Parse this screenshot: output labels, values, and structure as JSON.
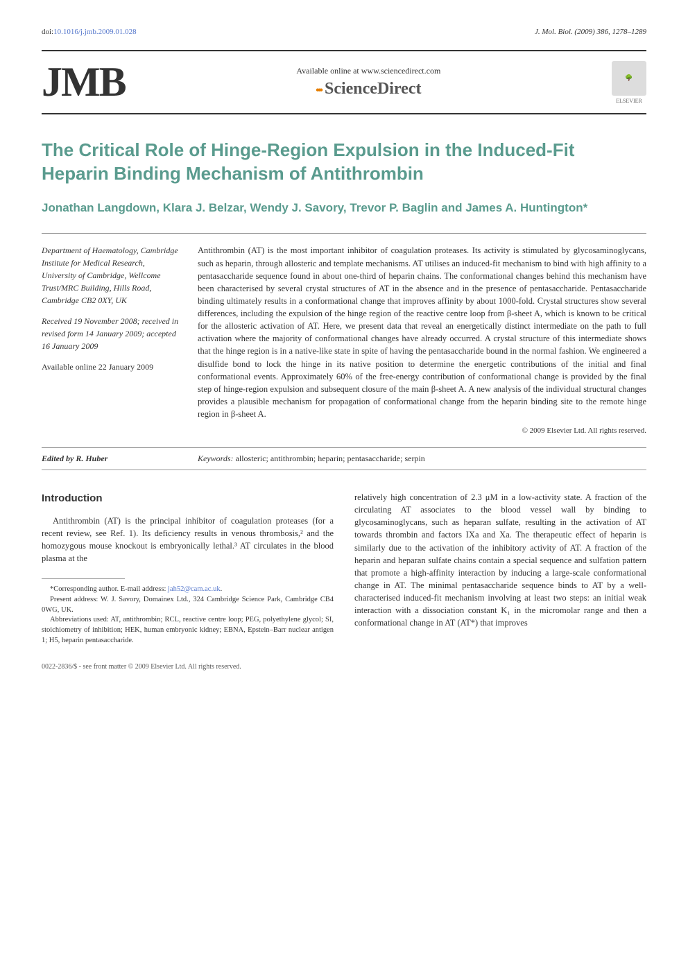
{
  "doi": {
    "prefix": "doi:",
    "value": "10.1016/j.jmb.2009.01.028"
  },
  "journal_ref": "J. Mol. Biol. (2009) 386, 1278–1289",
  "header": {
    "jmb": "JMB",
    "available": "Available online at www.sciencedirect.com",
    "sciencedirect": "ScienceDirect",
    "elsevier": "ELSEVIER"
  },
  "title": "The Critical Role of Hinge-Region Expulsion in the Induced-Fit Heparin Binding Mechanism of Antithrombin",
  "authors": "Jonathan Langdown, Klara J. Belzar, Wendy J. Savory, Trevor P. Baglin and James A. Huntington*",
  "affiliation": "Department of Haematology, Cambridge Institute for Medical Research, University of Cambridge, Wellcome Trust/MRC Building, Hills Road, Cambridge CB2 0XY, UK",
  "history": "Received 19 November 2008; received in revised form 14 January 2009; accepted 16 January 2009",
  "availability": "Available online 22 January 2009",
  "abstract": "Antithrombin (AT) is the most important inhibitor of coagulation proteases. Its activity is stimulated by glycosaminoglycans, such as heparin, through allosteric and template mechanisms. AT utilises an induced-fit mechanism to bind with high affinity to a pentasaccharide sequence found in about one-third of heparin chains. The conformational changes behind this mechanism have been characterised by several crystal structures of AT in the absence and in the presence of pentasaccharide. Pentasaccharide binding ultimately results in a conformational change that improves affinity by about 1000-fold. Crystal structures show several differences, including the expulsion of the hinge region of the reactive centre loop from β-sheet A, which is known to be critical for the allosteric activation of AT. Here, we present data that reveal an energetically distinct intermediate on the path to full activation where the majority of conformational changes have already occurred. A crystal structure of this intermediate shows that the hinge region is in a native-like state in spite of having the pentasaccharide bound in the normal fashion. We engineered a disulfide bond to lock the hinge in its native position to determine the energetic contributions of the initial and final conformational events. Approximately 60% of the free-energy contribution of conformational change is provided by the final step of hinge-region expulsion and subsequent closure of the main β-sheet A. A new analysis of the individual structural changes provides a plausible mechanism for propagation of conformational change from the heparin binding site to the remote hinge region in β-sheet A.",
  "copyright": "© 2009 Elsevier Ltd. All rights reserved.",
  "editor": "Edited by R. Huber",
  "keywords_label": "Keywords:",
  "keywords": " allosteric; antithrombin; heparin; pentasaccharide; serpin",
  "intro_heading": "Introduction",
  "intro_para": "Antithrombin (AT) is the principal inhibitor of coagulation proteases (for a recent review, see Ref. 1). Its deficiency results in venous thrombosis,² and the homozygous mouse knockout is embryonically lethal.³ AT circulates in the blood plasma at the",
  "col2_para": "relatively high concentration of 2.3 μM in a low-activity state. A fraction of the circulating AT associates to the blood vessel wall by binding to glycosaminoglycans, such as heparan sulfate, resulting in the activation of AT towards thrombin and factors IXa and Xa. The therapeutic effect of heparin is similarly due to the activation of the inhibitory activity of AT. A fraction of the heparin and heparan sulfate chains contain a special sequence and sulfation pattern that promote a high-affinity interaction by inducing a large-scale conformational change in AT. The minimal pentasaccharide sequence binds to AT by a well-characterised induced-fit mechanism involving at least two steps: an initial weak interaction with a dissociation constant K₁ in the micromolar range and then a conformational change in AT (AT*) that improves",
  "footnotes": {
    "corresponding": "*Corresponding author. E-mail address: ",
    "email": "jah52@cam.ac.uk",
    "present_address": "Present address: W. J. Savory, Domainex Ltd., 324 Cambridge Science Park, Cambridge CB4 0WG, UK.",
    "abbreviations": "Abbreviations used: AT, antithrombin; RCL, reactive centre loop; PEG, polyethylene glycol; SI, stoichiometry of inhibition; HEK, human embryonic kidney; EBNA, Epstein–Barr nuclear antigen 1; H5, heparin pentasaccharide."
  },
  "footer": "0022-2836/$ - see front matter © 2009 Elsevier Ltd. All rights reserved.",
  "colors": {
    "teal": "#5a9b8e",
    "link_blue": "#5577cc",
    "orange": "#e67e00",
    "text": "#333333",
    "rule": "#999999"
  },
  "typography": {
    "title_fontsize": 26,
    "authors_fontsize": 17,
    "body_fontsize": 12.5,
    "meta_fontsize": 12,
    "footnote_fontsize": 10.5
  }
}
